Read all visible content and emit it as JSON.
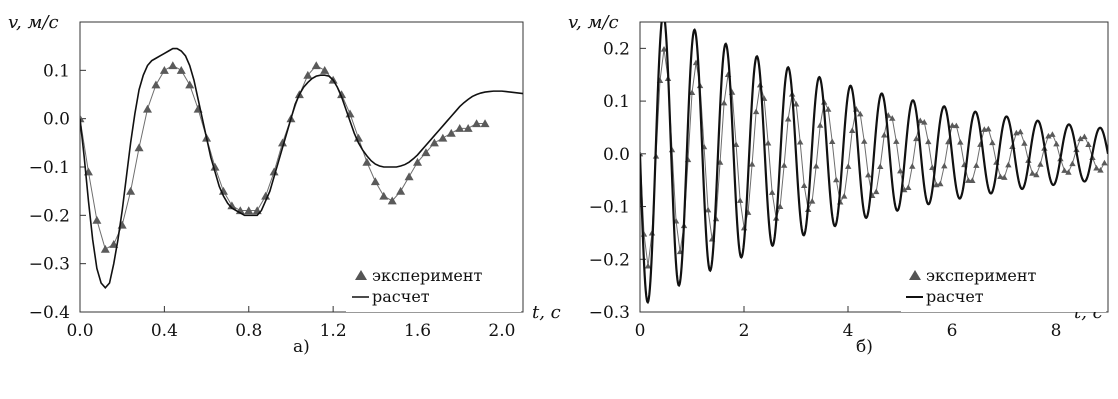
{
  "chart_data": [
    {
      "type": "line",
      "panel_label": "а)",
      "ylabel": "v, м/с",
      "xlabel": "t, с",
      "xlim": [
        0.0,
        2.1
      ],
      "ylim": [
        -0.4,
        0.2
      ],
      "x_ticks": [
        "0.0",
        "0.4",
        "0.8",
        "1.2",
        "1.6",
        "2.0"
      ],
      "y_ticks": [
        "0.1",
        "0.0",
        "−0.1",
        "−0.2",
        "−0.3",
        "−0.4"
      ],
      "y_tick_values": [
        0.1,
        0.0,
        -0.1,
        -0.2,
        -0.3,
        -0.4
      ],
      "x_tick_values": [
        0.0,
        0.4,
        0.8,
        1.2,
        1.6,
        2.0
      ],
      "legend_position": "bottom-right",
      "grid": false,
      "series": [
        {
          "name": "эксперимент",
          "style": "line-triangle",
          "color": "#6e6e6e",
          "x": [
            0.0,
            0.04,
            0.08,
            0.12,
            0.16,
            0.2,
            0.24,
            0.28,
            0.32,
            0.36,
            0.4,
            0.44,
            0.48,
            0.52,
            0.56,
            0.6,
            0.64,
            0.68,
            0.72,
            0.76,
            0.8,
            0.84,
            0.88,
            0.92,
            0.96,
            1.0,
            1.04,
            1.08,
            1.12,
            1.16,
            1.2,
            1.24,
            1.28,
            1.32,
            1.36,
            1.4,
            1.44,
            1.48,
            1.52,
            1.56,
            1.6,
            1.64,
            1.68,
            1.72,
            1.76,
            1.8,
            1.84,
            1.88,
            1.92
          ],
          "y": [
            0.0,
            -0.11,
            -0.21,
            -0.27,
            -0.26,
            -0.22,
            -0.15,
            -0.06,
            0.02,
            0.07,
            0.1,
            0.11,
            0.1,
            0.07,
            0.02,
            -0.04,
            -0.1,
            -0.15,
            -0.18,
            -0.19,
            -0.19,
            -0.19,
            -0.16,
            -0.11,
            -0.05,
            0.0,
            0.05,
            0.09,
            0.11,
            0.1,
            0.08,
            0.05,
            0.01,
            -0.04,
            -0.09,
            -0.13,
            -0.16,
            -0.17,
            -0.15,
            -0.12,
            -0.09,
            -0.07,
            -0.05,
            -0.04,
            -0.03,
            -0.02,
            -0.02,
            -0.01,
            -0.01
          ]
        },
        {
          "name": "расчет",
          "style": "line",
          "color": "#111111",
          "x": [
            0.0,
            0.02,
            0.04,
            0.06,
            0.08,
            0.1,
            0.12,
            0.14,
            0.16,
            0.18,
            0.2,
            0.22,
            0.24,
            0.26,
            0.28,
            0.3,
            0.32,
            0.34,
            0.36,
            0.38,
            0.4,
            0.42,
            0.44,
            0.46,
            0.48,
            0.5,
            0.52,
            0.54,
            0.56,
            0.58,
            0.6,
            0.62,
            0.64,
            0.66,
            0.68,
            0.7,
            0.72,
            0.74,
            0.76,
            0.78,
            0.8,
            0.82,
            0.84,
            0.86,
            0.88,
            0.9,
            0.92,
            0.94,
            0.96,
            0.98,
            1.0,
            1.02,
            1.04,
            1.06,
            1.08,
            1.1,
            1.12,
            1.14,
            1.16,
            1.18,
            1.2,
            1.22,
            1.24,
            1.26,
            1.28,
            1.3,
            1.32,
            1.34,
            1.36,
            1.38,
            1.4,
            1.42,
            1.44,
            1.46,
            1.48,
            1.5,
            1.52,
            1.54,
            1.56,
            1.58,
            1.6,
            1.62,
            1.64,
            1.66,
            1.68,
            1.7,
            1.72,
            1.74,
            1.76,
            1.78,
            1.8,
            1.82,
            1.84,
            1.86,
            1.88,
            1.9,
            1.92,
            1.94,
            1.96,
            1.98,
            2.0,
            2.02,
            2.04,
            2.06,
            2.08,
            2.1
          ],
          "y": [
            0.0,
            -0.08,
            -0.17,
            -0.25,
            -0.31,
            -0.34,
            -0.35,
            -0.34,
            -0.3,
            -0.25,
            -0.19,
            -0.12,
            -0.05,
            0.01,
            0.06,
            0.09,
            0.11,
            0.12,
            0.125,
            0.13,
            0.135,
            0.14,
            0.145,
            0.145,
            0.14,
            0.13,
            0.11,
            0.08,
            0.04,
            0.0,
            -0.04,
            -0.08,
            -0.11,
            -0.14,
            -0.16,
            -0.175,
            -0.185,
            -0.19,
            -0.195,
            -0.2,
            -0.2,
            -0.2,
            -0.2,
            -0.19,
            -0.17,
            -0.15,
            -0.12,
            -0.09,
            -0.06,
            -0.03,
            0.0,
            0.03,
            0.05,
            0.065,
            0.075,
            0.083,
            0.088,
            0.09,
            0.09,
            0.088,
            0.08,
            0.065,
            0.045,
            0.02,
            -0.005,
            -0.03,
            -0.05,
            -0.065,
            -0.077,
            -0.087,
            -0.094,
            -0.098,
            -0.1,
            -0.1,
            -0.1,
            -0.1,
            -0.098,
            -0.095,
            -0.09,
            -0.083,
            -0.075,
            -0.065,
            -0.055,
            -0.045,
            -0.035,
            -0.025,
            -0.015,
            -0.005,
            0.005,
            0.015,
            0.025,
            0.033,
            0.04,
            0.046,
            0.05,
            0.053,
            0.055,
            0.056,
            0.057,
            0.057,
            0.057,
            0.056,
            0.055,
            0.054,
            0.053,
            0.052
          ]
        }
      ]
    },
    {
      "type": "line",
      "panel_label": "б)",
      "ylabel": "v, м/с",
      "xlabel": "t, с",
      "xlim": [
        0,
        9
      ],
      "ylim": [
        -0.3,
        0.25
      ],
      "x_ticks": [
        "0",
        "2",
        "4",
        "6",
        "8"
      ],
      "y_ticks": [
        "0.2",
        "0.1",
        "0.0",
        "−0.1",
        "−0.2",
        "−0.3"
      ],
      "y_tick_values": [
        0.2,
        0.1,
        0.0,
        -0.1,
        -0.2,
        -0.3
      ],
      "x_tick_values": [
        0,
        2,
        4,
        6,
        8
      ],
      "legend_position": "bottom-right",
      "grid": false,
      "series": [
        {
          "name": "эксперимент",
          "style": "line-triangle",
          "color": "#6e6e6e",
          "model": {
            "amp": 0.22,
            "decay": 0.22,
            "period": 0.62,
            "phase": 0.0,
            "sign": -1,
            "t0": 0.0,
            "t1": 9.0,
            "step": 0.077,
            "floor": 0.02
          }
        },
        {
          "name": "расчет",
          "style": "line",
          "color": "#111111",
          "model": {
            "amp": 0.29,
            "decay": 0.2,
            "period": 0.6,
            "phase": 0.0,
            "sign": -1,
            "t0": 0.0,
            "t1": 9.0,
            "step": 0.01,
            "floor": 0.015
          }
        }
      ]
    }
  ]
}
